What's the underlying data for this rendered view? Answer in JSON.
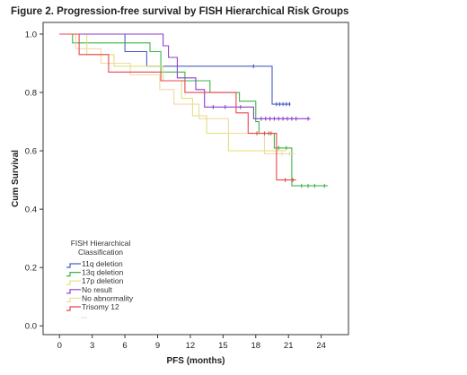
{
  "title": "Figure 2. Progression-free survival by FISH Hierarchical Risk Groups",
  "chart_data": {
    "type": "line",
    "subtype": "kaplan-meier-step",
    "title": "Figure 2. Progression-free survival by FISH Hierarchical Risk Groups",
    "xlabel": "PFS (months)",
    "ylabel": "Cum Survival",
    "xlim": [
      -1.5,
      26.5
    ],
    "ylim": [
      -0.03,
      1.04
    ],
    "xticks": [
      0,
      3,
      6,
      9,
      12,
      15,
      18,
      21,
      24
    ],
    "yticks": [
      0.0,
      0.2,
      0.4,
      0.6,
      0.8,
      1.0
    ],
    "ytick_labels": [
      "0.0",
      "0.2",
      "0.4",
      "0.6",
      "0.8",
      "1.0"
    ],
    "grid": false,
    "legend": {
      "placement": "bottom-left",
      "title_lines": [
        "FISH Hierarchical",
        "Classification"
      ],
      "extra_line": "..."
    },
    "series": [
      {
        "name": "11q deletion",
        "color": "#4a5fc1",
        "steps": [
          [
            0,
            1.0
          ],
          [
            6,
            1.0
          ],
          [
            6,
            0.94
          ],
          [
            8,
            0.94
          ],
          [
            8,
            0.89
          ],
          [
            19.5,
            0.89
          ],
          [
            19.5,
            0.76
          ],
          [
            21.2,
            0.76
          ]
        ],
        "censored": [
          [
            17.8,
            0.89
          ],
          [
            19.9,
            0.76
          ],
          [
            20.2,
            0.76
          ],
          [
            20.5,
            0.76
          ],
          [
            20.8,
            0.76
          ],
          [
            21.1,
            0.76
          ]
        ]
      },
      {
        "name": "13q deletion",
        "color": "#3fb34a",
        "steps": [
          [
            0,
            1.0
          ],
          [
            1.2,
            1.0
          ],
          [
            1.2,
            0.97
          ],
          [
            8.3,
            0.97
          ],
          [
            8.3,
            0.94
          ],
          [
            9.3,
            0.94
          ],
          [
            9.3,
            0.87
          ],
          [
            11.5,
            0.87
          ],
          [
            11.5,
            0.84
          ],
          [
            13.8,
            0.84
          ],
          [
            13.8,
            0.8
          ],
          [
            16.5,
            0.8
          ],
          [
            16.5,
            0.77
          ],
          [
            18,
            0.77
          ],
          [
            18,
            0.7
          ],
          [
            18.3,
            0.7
          ],
          [
            18.3,
            0.66
          ],
          [
            19.7,
            0.66
          ],
          [
            19.7,
            0.61
          ],
          [
            21.3,
            0.61
          ],
          [
            21.3,
            0.48
          ],
          [
            24.6,
            0.48
          ]
        ],
        "censored": [
          [
            19.2,
            0.66
          ],
          [
            20.1,
            0.61
          ],
          [
            20.8,
            0.61
          ],
          [
            22.2,
            0.48
          ],
          [
            22.8,
            0.48
          ],
          [
            23.4,
            0.48
          ],
          [
            24.3,
            0.48
          ]
        ]
      },
      {
        "name": "17p deletion",
        "color": "#e3e07a",
        "steps": [
          [
            0,
            1.0
          ],
          [
            2.5,
            1.0
          ],
          [
            2.5,
            0.93
          ],
          [
            5,
            0.93
          ],
          [
            5,
            0.89
          ],
          [
            9.5,
            0.89
          ],
          [
            9.5,
            0.84
          ],
          [
            11.2,
            0.84
          ],
          [
            11.2,
            0.78
          ],
          [
            12.2,
            0.78
          ],
          [
            12.2,
            0.72
          ],
          [
            13.5,
            0.72
          ],
          [
            13.5,
            0.66
          ],
          [
            15.5,
            0.66
          ],
          [
            15.5,
            0.6
          ],
          [
            20.8,
            0.6
          ]
        ],
        "censored": []
      },
      {
        "name": "No result",
        "color": "#8c3fc8",
        "steps": [
          [
            0,
            1.0
          ],
          [
            9.5,
            1.0
          ],
          [
            9.5,
            0.96
          ],
          [
            10,
            0.96
          ],
          [
            10,
            0.92
          ],
          [
            10.8,
            0.92
          ],
          [
            10.8,
            0.85
          ],
          [
            12.5,
            0.85
          ],
          [
            12.5,
            0.81
          ],
          [
            13.3,
            0.81
          ],
          [
            13.3,
            0.75
          ],
          [
            17.8,
            0.75
          ],
          [
            17.8,
            0.71
          ],
          [
            23,
            0.71
          ]
        ],
        "censored": [
          [
            14.1,
            0.75
          ],
          [
            15.2,
            0.75
          ],
          [
            16.6,
            0.75
          ],
          [
            18.5,
            0.71
          ],
          [
            18.9,
            0.71
          ],
          [
            19.3,
            0.71
          ],
          [
            19.7,
            0.71
          ],
          [
            20.1,
            0.71
          ],
          [
            20.5,
            0.71
          ],
          [
            20.9,
            0.71
          ],
          [
            21.3,
            0.71
          ],
          [
            21.7,
            0.71
          ],
          [
            22.8,
            0.71
          ]
        ]
      },
      {
        "name": "No abnormality",
        "color": "#f0d9a6",
        "steps": [
          [
            0,
            1.0
          ],
          [
            1.5,
            1.0
          ],
          [
            1.5,
            0.95
          ],
          [
            3.8,
            0.95
          ],
          [
            3.8,
            0.9
          ],
          [
            6.5,
            0.9
          ],
          [
            6.5,
            0.86
          ],
          [
            9.2,
            0.86
          ],
          [
            9.2,
            0.81
          ],
          [
            10.5,
            0.81
          ],
          [
            10.5,
            0.76
          ],
          [
            12.8,
            0.76
          ],
          [
            12.8,
            0.71
          ],
          [
            15.5,
            0.71
          ],
          [
            15.5,
            0.66
          ],
          [
            18.8,
            0.66
          ],
          [
            18.8,
            0.59
          ],
          [
            21.6,
            0.59
          ]
        ],
        "censored": [
          [
            20.4,
            0.59
          ],
          [
            21.1,
            0.59
          ]
        ]
      },
      {
        "name": "Trisomy 12",
        "color": "#e8474e",
        "steps": [
          [
            0,
            1.0
          ],
          [
            1.8,
            1.0
          ],
          [
            1.8,
            0.93
          ],
          [
            4.5,
            0.93
          ],
          [
            4.5,
            0.87
          ],
          [
            9.3,
            0.87
          ],
          [
            9.3,
            0.84
          ],
          [
            11.5,
            0.84
          ],
          [
            11.5,
            0.8
          ],
          [
            16.2,
            0.8
          ],
          [
            16.2,
            0.73
          ],
          [
            17.3,
            0.73
          ],
          [
            17.3,
            0.66
          ],
          [
            19.9,
            0.66
          ],
          [
            19.9,
            0.5
          ],
          [
            21.7,
            0.5
          ]
        ],
        "censored": [
          [
            18.1,
            0.66
          ],
          [
            18.8,
            0.66
          ],
          [
            19.4,
            0.66
          ],
          [
            20.7,
            0.5
          ],
          [
            21.4,
            0.5
          ]
        ]
      }
    ]
  }
}
